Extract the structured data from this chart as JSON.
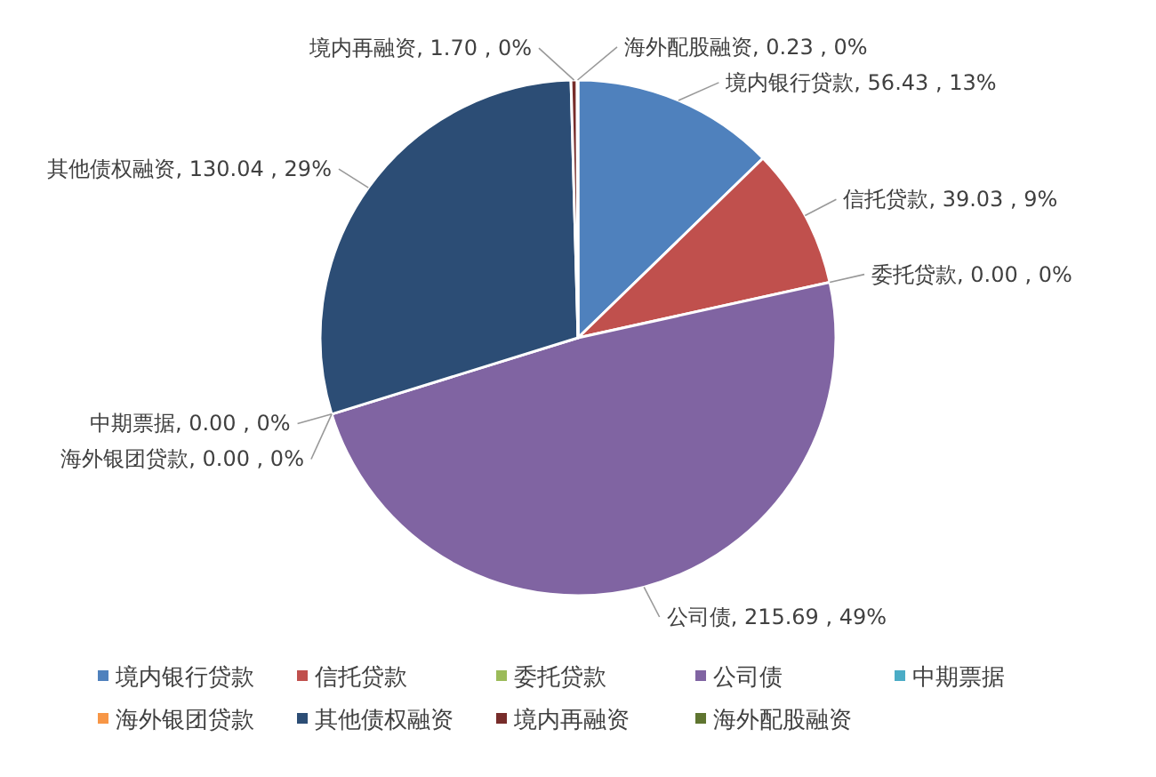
{
  "chart_data": {
    "type": "pie",
    "categories": [
      "境内银行贷款",
      "信托贷款",
      "委托贷款",
      "公司债",
      "中期票据",
      "海外银团贷款",
      "其他债权融资",
      "境内再融资",
      "海外配股融资"
    ],
    "values": [
      56.43,
      39.03,
      0.0,
      215.69,
      0.0,
      0.0,
      130.04,
      1.7,
      0.23
    ],
    "colors": [
      "#4f81bd",
      "#c0504d",
      "#9bbb59",
      "#8064a2",
      "#4bacc6",
      "#f79646",
      "#2c4d75",
      "#772c2a",
      "#5f7530"
    ],
    "value_labels": [
      ", 56.43 , 13%",
      ", 39.03 , 9%",
      ", 0.00 , 0%",
      ", 215.69 , 49%",
      ", 0.00 , 0%",
      ", 0.00 , 0%",
      ", 130.04 , 29%",
      ", 1.70 , 0%",
      ", 0.23 , 0%"
    ],
    "legend": "bottom"
  }
}
